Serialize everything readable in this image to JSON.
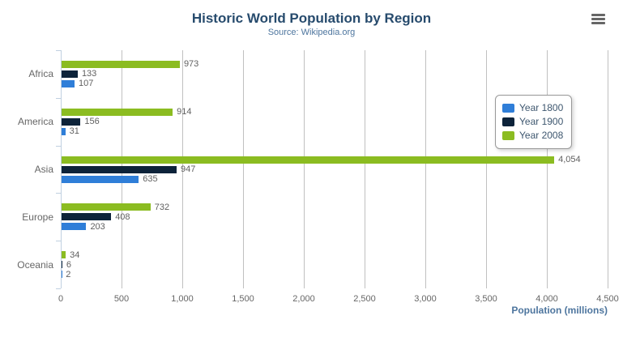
{
  "chart_data": {
    "type": "bar",
    "orientation": "horizontal",
    "title": "Historic World Population by Region",
    "subtitle": "Source: Wikipedia.org",
    "categories": [
      "Africa",
      "America",
      "Asia",
      "Europe",
      "Oceania"
    ],
    "series": [
      {
        "name": "Year 1800",
        "color": "#2f7ed8",
        "values": [
          107,
          31,
          635,
          203,
          2
        ]
      },
      {
        "name": "Year 1900",
        "color": "#0d233a",
        "values": [
          133,
          156,
          947,
          408,
          6
        ]
      },
      {
        "name": "Year 2008",
        "color": "#8bbc21",
        "values": [
          973,
          914,
          4054,
          732,
          34
        ]
      }
    ],
    "bar_order_top_to_bottom": [
      "Year 2008",
      "Year 1900",
      "Year 1800"
    ],
    "data_labels": [
      "107",
      "31",
      "635",
      "203",
      "2",
      "133",
      "156",
      "947",
      "408",
      "6",
      "973",
      "914",
      "4,054",
      "732",
      "34"
    ],
    "xlabel": "Population (millions)",
    "ylabel": "",
    "xlim": [
      0,
      4500
    ],
    "x_tick_values": [
      0,
      500,
      1000,
      1500,
      2000,
      2500,
      3000,
      3500,
      4000,
      4500
    ],
    "x_tick_labels": [
      "0",
      "500",
      "1,000",
      "1,500",
      "2,000",
      "2,500",
      "3,000",
      "3,500",
      "4,000",
      "4,500"
    ],
    "grid": true,
    "legend_position": "right",
    "legend_items": [
      "Year 1800",
      "Year 1900",
      "Year 2008"
    ]
  },
  "icons": {
    "export_menu": "hamburger-menu-icon"
  },
  "colors": {
    "title": "#274b6d",
    "subtitle": "#4d759e",
    "axis_title": "#4d759e",
    "gridline": "#c0c0c0",
    "axis_line": "#c0d0e0",
    "tick_label": "#666666",
    "data_label": "#606060",
    "legend_text": "#3e576f",
    "legend_border": "#999999",
    "menu_icon": "#666666",
    "background": "#ffffff"
  }
}
